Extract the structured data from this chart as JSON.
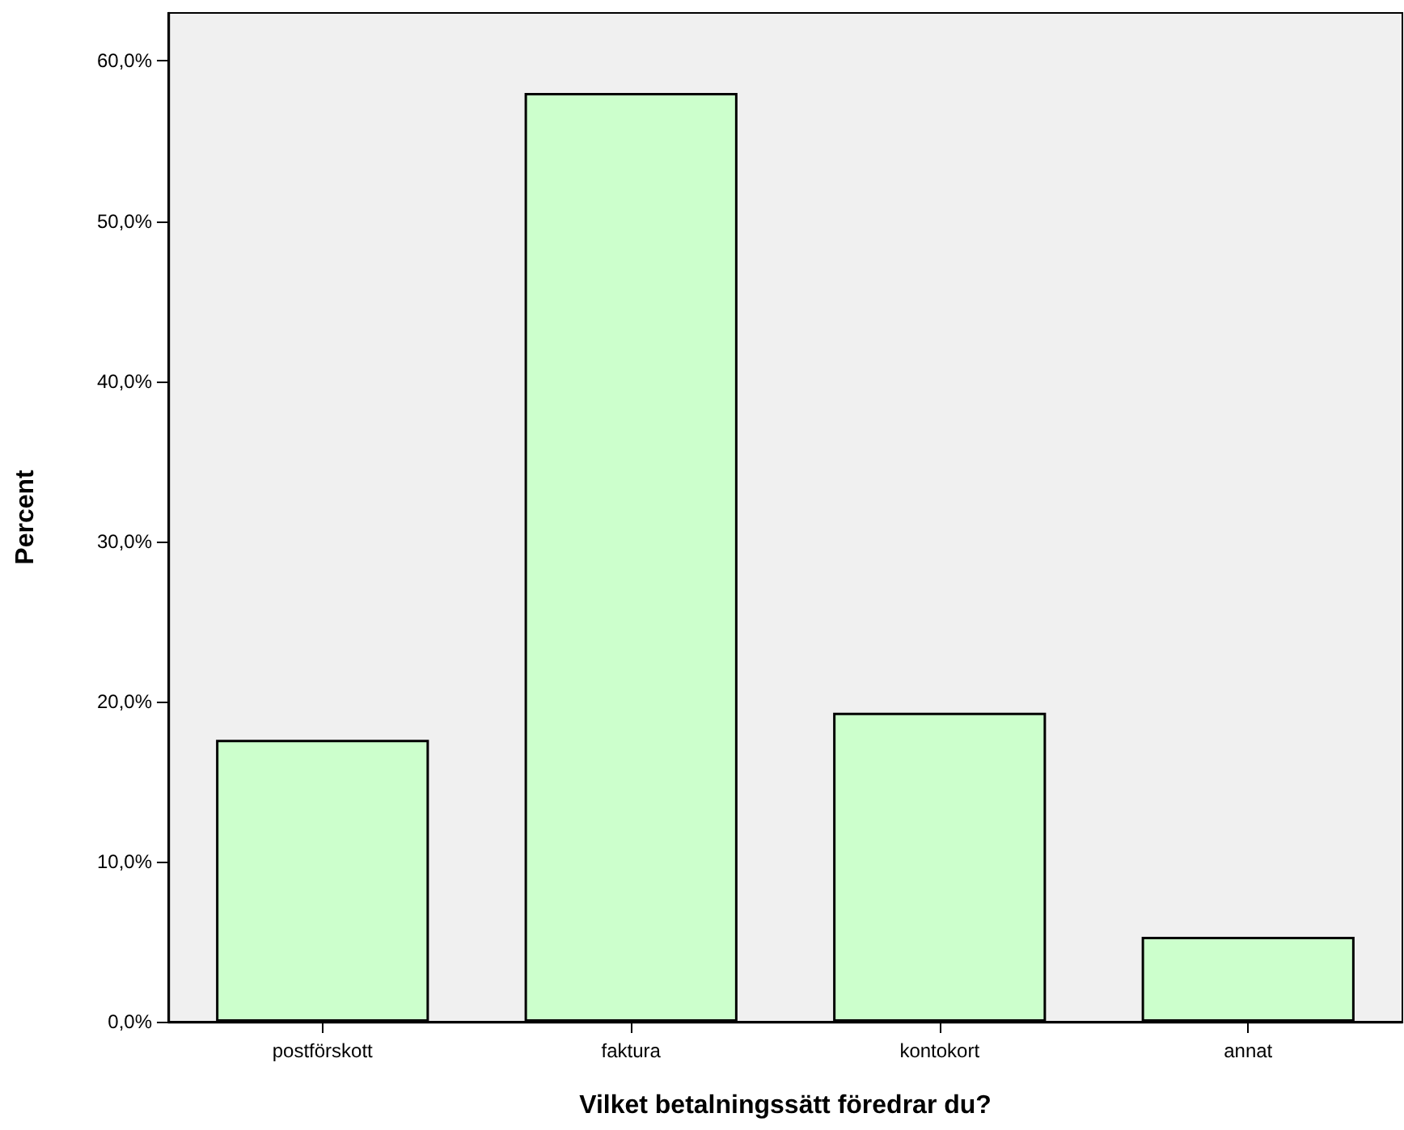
{
  "chart_data": {
    "type": "bar",
    "xlabel": "Vilket betalningssätt föredrar du?",
    "ylabel": "Percent",
    "categories": [
      "postförskott",
      "faktura",
      "kontokort",
      "annat"
    ],
    "values": [
      17.6,
      58.0,
      19.3,
      5.3
    ],
    "color": "#ccffcc",
    "ylim": [
      0,
      63
    ],
    "yticks": [
      {
        "value": 0,
        "label": "0,0%"
      },
      {
        "value": 10,
        "label": "10,0%"
      },
      {
        "value": 20,
        "label": "20,0%"
      },
      {
        "value": 30,
        "label": "30,0%"
      },
      {
        "value": 40,
        "label": "40,0%"
      },
      {
        "value": 50,
        "label": "50,0%"
      },
      {
        "value": 60,
        "label": "60,0%"
      }
    ],
    "grid": false
  }
}
